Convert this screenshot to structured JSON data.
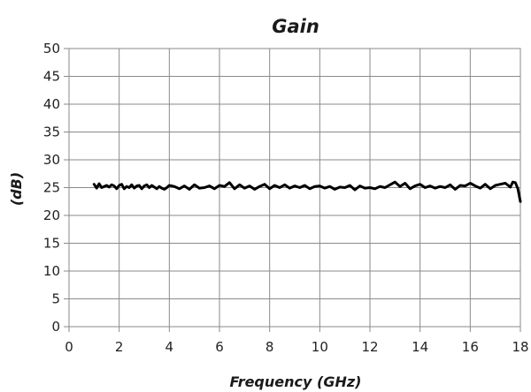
{
  "chart_data": {
    "type": "line",
    "title": "Gain",
    "xlabel": "Frequency (GHz)",
    "ylabel": "(dB)",
    "xlim": [
      0,
      18
    ],
    "ylim": [
      0,
      50
    ],
    "xticks": [
      0,
      2,
      4,
      6,
      8,
      10,
      12,
      14,
      16,
      18
    ],
    "yticks": [
      0,
      5,
      10,
      15,
      20,
      25,
      30,
      35,
      40,
      45,
      50
    ],
    "grid": true,
    "legend": "none",
    "series": [
      {
        "color": "#000000",
        "x": [
          1.0,
          1.1,
          1.2,
          1.3,
          1.4,
          1.5,
          1.6,
          1.7,
          1.8,
          1.9,
          2.0,
          2.1,
          2.2,
          2.3,
          2.4,
          2.5,
          2.6,
          2.7,
          2.8,
          2.9,
          3.0,
          3.1,
          3.2,
          3.3,
          3.4,
          3.5,
          3.6,
          3.7,
          3.8,
          3.9,
          4.0,
          4.2,
          4.4,
          4.6,
          4.8,
          5.0,
          5.2,
          5.4,
          5.6,
          5.8,
          6.0,
          6.2,
          6.4,
          6.6,
          6.8,
          7.0,
          7.2,
          7.4,
          7.6,
          7.8,
          8.0,
          8.2,
          8.4,
          8.6,
          8.8,
          9.0,
          9.2,
          9.4,
          9.6,
          9.8,
          10.0,
          10.2,
          10.4,
          10.6,
          10.8,
          11.0,
          11.2,
          11.4,
          11.6,
          11.8,
          12.0,
          12.2,
          12.4,
          12.6,
          12.8,
          13.0,
          13.2,
          13.4,
          13.6,
          13.8,
          14.0,
          14.2,
          14.4,
          14.6,
          14.8,
          15.0,
          15.2,
          15.4,
          15.6,
          15.8,
          16.0,
          16.2,
          16.4,
          16.6,
          16.8,
          17.0,
          17.2,
          17.4,
          17.6,
          17.7,
          17.8,
          17.9,
          18.0
        ],
        "y": [
          25.6,
          24.9,
          25.7,
          25.0,
          25.2,
          25.4,
          25.1,
          25.5,
          25.3,
          24.8,
          25.4,
          25.6,
          24.8,
          25.2,
          25.0,
          25.5,
          24.9,
          25.3,
          25.4,
          24.8,
          25.3,
          25.5,
          25.0,
          25.4,
          25.1,
          24.8,
          25.2,
          24.9,
          24.7,
          25.0,
          25.4,
          25.2,
          24.8,
          25.3,
          24.7,
          25.5,
          24.9,
          25.0,
          25.3,
          24.8,
          25.4,
          25.2,
          25.9,
          24.8,
          25.5,
          24.9,
          25.3,
          24.7,
          25.2,
          25.6,
          24.8,
          25.4,
          25.0,
          25.5,
          24.9,
          25.3,
          25.0,
          25.4,
          24.8,
          25.2,
          25.3,
          24.9,
          25.2,
          24.7,
          25.1,
          25.0,
          25.4,
          24.6,
          25.3,
          24.9,
          25.0,
          24.8,
          25.2,
          25.0,
          25.5,
          26.0,
          25.2,
          25.8,
          24.8,
          25.3,
          25.6,
          25.0,
          25.3,
          24.9,
          25.2,
          25.0,
          25.5,
          24.7,
          25.4,
          25.3,
          25.8,
          25.3,
          24.9,
          25.6,
          24.8,
          25.4,
          25.6,
          25.8,
          25.1,
          26.0,
          25.9,
          24.8,
          22.5
        ]
      }
    ]
  }
}
